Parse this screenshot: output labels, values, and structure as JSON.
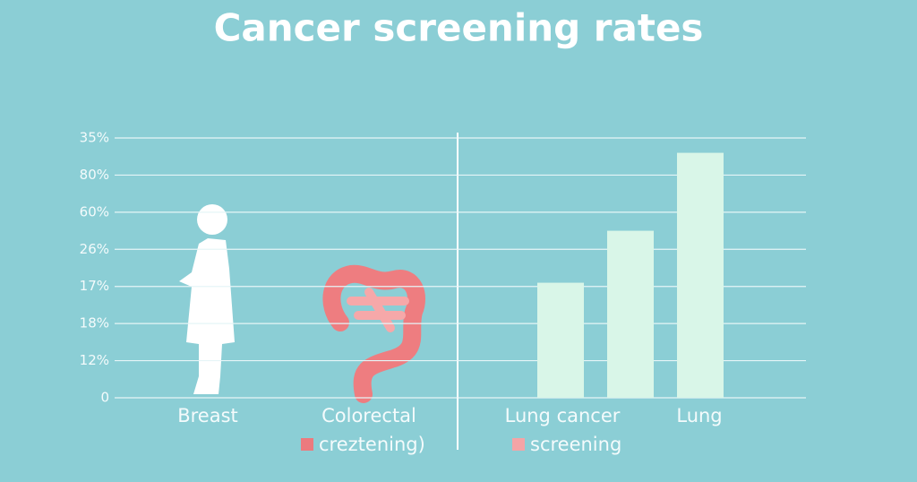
{
  "chart_data": {
    "type": "bar",
    "title": "Cancer screening rates",
    "categories": [
      "Breast",
      "Colorectal",
      "Lung cancer",
      null,
      "Lung"
    ],
    "values": [
      null,
      null,
      3.1,
      4.5,
      6.6
    ],
    "color": "#d9f6e8",
    "ylim": [
      0,
      7
    ],
    "yticks": [
      {
        "value": 0,
        "label": "0"
      },
      {
        "value": 1,
        "label": "12%"
      },
      {
        "value": 2,
        "label": "18%"
      },
      {
        "value": 3,
        "label": "17%"
      },
      {
        "value": 4,
        "label": "26%"
      },
      {
        "value": 5,
        "label": "60%"
      },
      {
        "value": 6,
        "label": "80%"
      },
      {
        "value": 7,
        "label": "35%"
      }
    ],
    "grid": true,
    "legend": [
      {
        "label": "creztening)",
        "color": "#ec7a7e"
      },
      {
        "label": "screening",
        "color": "#f4a4a6"
      }
    ]
  }
}
